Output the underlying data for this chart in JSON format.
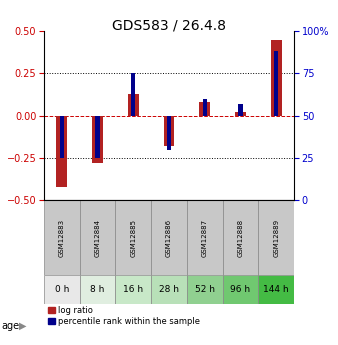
{
  "title": "GDS583 / 26.4.8",
  "samples": [
    "GSM12883",
    "GSM12884",
    "GSM12885",
    "GSM12886",
    "GSM12887",
    "GSM12888",
    "GSM12889"
  ],
  "ages": [
    "0 h",
    "8 h",
    "16 h",
    "28 h",
    "52 h",
    "96 h",
    "144 h"
  ],
  "log_ratio": [
    -0.42,
    -0.28,
    0.13,
    -0.18,
    0.08,
    0.02,
    0.45
  ],
  "percentile_rank": [
    25,
    25,
    75,
    30,
    60,
    57,
    88
  ],
  "ylim_left": [
    -0.5,
    0.5
  ],
  "ylim_right": [
    0,
    100
  ],
  "yticks_left": [
    -0.5,
    -0.25,
    0,
    0.25,
    0.5
  ],
  "yticks_right": [
    0,
    25,
    50,
    75,
    100
  ],
  "bar_color_red": "#B22222",
  "bar_color_blue": "#00008B",
  "age_bg_colors": [
    "#E8E8E8",
    "#E0EEE0",
    "#C8E8C8",
    "#B8E0B8",
    "#90D090",
    "#70C870",
    "#44BB44"
  ],
  "sample_bg_color": "#C8C8C8",
  "legend_red_label": "log ratio",
  "legend_blue_label": "percentile rank within the sample",
  "left_ytick_color": "#CC0000",
  "right_ytick_color": "#0000CC",
  "right_ytick_labels": [
    "0",
    "25",
    "50",
    "75",
    "100%"
  ]
}
